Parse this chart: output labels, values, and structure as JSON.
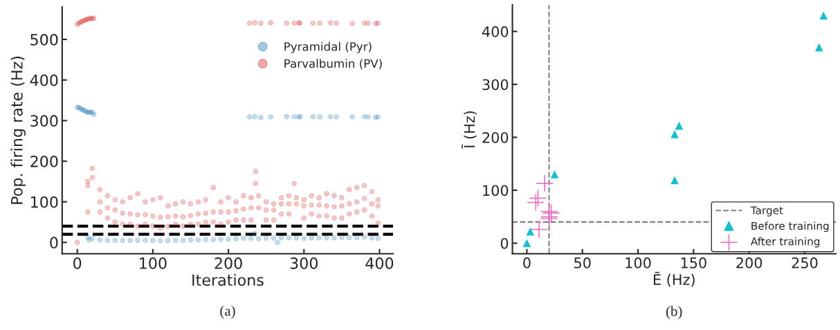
{
  "chart_data": [
    {
      "type": "scatter",
      "xlabel": "Iterations",
      "ylabel": "Pop. firing rate (Hz)",
      "annotations": [
        "(a)"
      ],
      "xlim": [
        -20,
        418
      ],
      "ylim": [
        -28,
        580
      ],
      "xticks": [
        0,
        100,
        200,
        300,
        400
      ],
      "yticks": [
        0,
        100,
        200,
        300,
        400,
        500
      ],
      "grid": false,
      "legend": "top right",
      "marker": "circle",
      "ref_lines": [
        {
          "axis": "y",
          "value": 20,
          "color": "#000000",
          "line_style": "dashed"
        },
        {
          "axis": "y",
          "value": 40,
          "color": "#000000",
          "line_style": "dashed"
        }
      ],
      "series": [
        {
          "name": "Pyramidal (Pyr)",
          "color": "#1f77b4",
          "x": [
            0,
            2,
            4,
            6,
            8,
            10,
            12,
            14,
            16,
            18,
            20,
            22,
            14,
            16,
            20,
            30,
            40,
            50,
            60,
            70,
            80,
            90,
            100,
            110,
            120,
            130,
            140,
            150,
            160,
            170,
            180,
            190,
            200,
            210,
            220,
            230,
            235,
            240,
            250,
            260,
            265,
            270,
            280,
            290,
            300,
            310,
            320,
            330,
            340,
            350,
            360,
            370,
            380,
            390,
            398,
            228,
            235,
            243,
            256,
            277,
            287,
            293,
            295,
            312,
            321,
            335,
            343,
            364,
            380,
            385,
            395,
            398
          ],
          "values": [
            333,
            332,
            330,
            328,
            326,
            324,
            322,
            320,
            321,
            321,
            320,
            315,
            12,
            6,
            10,
            6,
            5,
            5,
            5,
            5,
            5,
            5,
            5,
            4,
            5,
            5,
            5,
            6,
            6,
            7,
            7,
            8,
            8,
            9,
            10,
            10,
            22,
            9,
            10,
            10,
            0,
            11,
            11,
            11,
            10,
            11,
            11,
            11,
            11,
            12,
            12,
            12,
            13,
            11,
            10,
            309,
            310,
            308,
            309,
            310,
            310,
            309,
            310,
            310,
            309,
            310,
            309,
            309,
            310,
            309,
            308,
            309
          ]
        },
        {
          "name": "Parvalbumin (PV)",
          "color": "#d62728",
          "x": [
            0,
            2,
            4,
            6,
            8,
            10,
            12,
            14,
            16,
            18,
            20,
            22,
            14,
            14,
            14,
            20,
            20,
            30,
            30,
            30,
            40,
            40,
            40,
            50,
            50,
            50,
            60,
            60,
            60,
            70,
            70,
            70,
            80,
            80,
            80,
            90,
            90,
            90,
            100,
            100,
            100,
            110,
            110,
            110,
            120,
            120,
            120,
            130,
            130,
            130,
            140,
            140,
            140,
            150,
            150,
            150,
            160,
            160,
            160,
            170,
            170,
            170,
            180,
            180,
            180,
            190,
            190,
            190,
            200,
            200,
            200,
            210,
            210,
            210,
            220,
            220,
            220,
            230,
            230,
            230,
            236,
            236,
            240,
            240,
            250,
            250,
            250,
            260,
            260,
            260,
            270,
            270,
            270,
            280,
            280,
            280,
            287,
            290,
            290,
            300,
            300,
            300,
            310,
            310,
            310,
            320,
            320,
            320,
            330,
            330,
            330,
            340,
            340,
            340,
            350,
            350,
            350,
            360,
            360,
            360,
            370,
            370,
            370,
            380,
            380,
            380,
            390,
            390,
            390,
            398,
            398,
            398,
            0,
            228,
            235,
            243,
            256,
            277,
            287,
            293,
            295,
            312,
            321,
            335,
            343,
            364,
            380,
            385,
            395,
            398
          ],
          "values": [
            537,
            540,
            542,
            544,
            546,
            547,
            549,
            550,
            551,
            552,
            552,
            552,
            150,
            140,
            75,
            182,
            160,
            130,
            100,
            75,
            115,
            85,
            60,
            105,
            80,
            50,
            100,
            72,
            45,
            110,
            70,
            45,
            120,
            68,
            40,
            100,
            68,
            45,
            105,
            65,
            40,
            110,
            62,
            35,
            90,
            63,
            40,
            95,
            65,
            45,
            100,
            63,
            40,
            95,
            66,
            45,
            100,
            70,
            45,
            105,
            72,
            50,
            135,
            75,
            50,
            100,
            75,
            45,
            110,
            75,
            50,
            100,
            78,
            55,
            115,
            82,
            55,
            110,
            85,
            55,
            175,
            145,
            115,
            85,
            100,
            80,
            55,
            95,
            80,
            55,
            110,
            95,
            70,
            115,
            95,
            70,
            145,
            110,
            95,
            105,
            90,
            60,
            115,
            92,
            70,
            110,
            92,
            65,
            120,
            90,
            65,
            115,
            88,
            60,
            110,
            90,
            60,
            130,
            95,
            70,
            135,
            100,
            75,
            140,
            108,
            80,
            125,
            95,
            65,
            105,
            90,
            47,
            0,
            540,
            541,
            540,
            541,
            540,
            540,
            541,
            540,
            540,
            540,
            541,
            540,
            539,
            540,
            540,
            539,
            540
          ]
        }
      ]
    },
    {
      "type": "scatter",
      "xlabel": "Ē (Hz)",
      "ylabel": "Ī (Hz)",
      "annotations": [
        "(b)"
      ],
      "xlim": [
        -13,
        278
      ],
      "ylim": [
        -20,
        450
      ],
      "xticks": [
        0,
        50,
        100,
        150,
        200,
        250
      ],
      "yticks": [
        0,
        100,
        200,
        300,
        400
      ],
      "grid": false,
      "legend": "bottom right",
      "ref_lines": [
        {
          "axis": "y",
          "value": 40,
          "label": "Target",
          "color": "#808080",
          "line_style": "dashed"
        },
        {
          "axis": "x",
          "value": 20,
          "color": "#808080",
          "line_style": "dashed"
        }
      ],
      "series": [
        {
          "name": "Before training",
          "color": "#17becf",
          "marker": "triangle",
          "x": [
            0,
            3,
            25,
            133,
            133,
            137,
            263,
            267
          ],
          "values": [
            0,
            22,
            130,
            119,
            206,
            222,
            370,
            430
          ]
        },
        {
          "name": "After training",
          "color": "#e377c2",
          "marker": "cross",
          "x": [
            16,
            10,
            8,
            11,
            20,
            22,
            20,
            20
          ],
          "values": [
            113,
            85,
            77,
            26,
            60,
            57,
            50,
            47
          ]
        }
      ]
    }
  ]
}
